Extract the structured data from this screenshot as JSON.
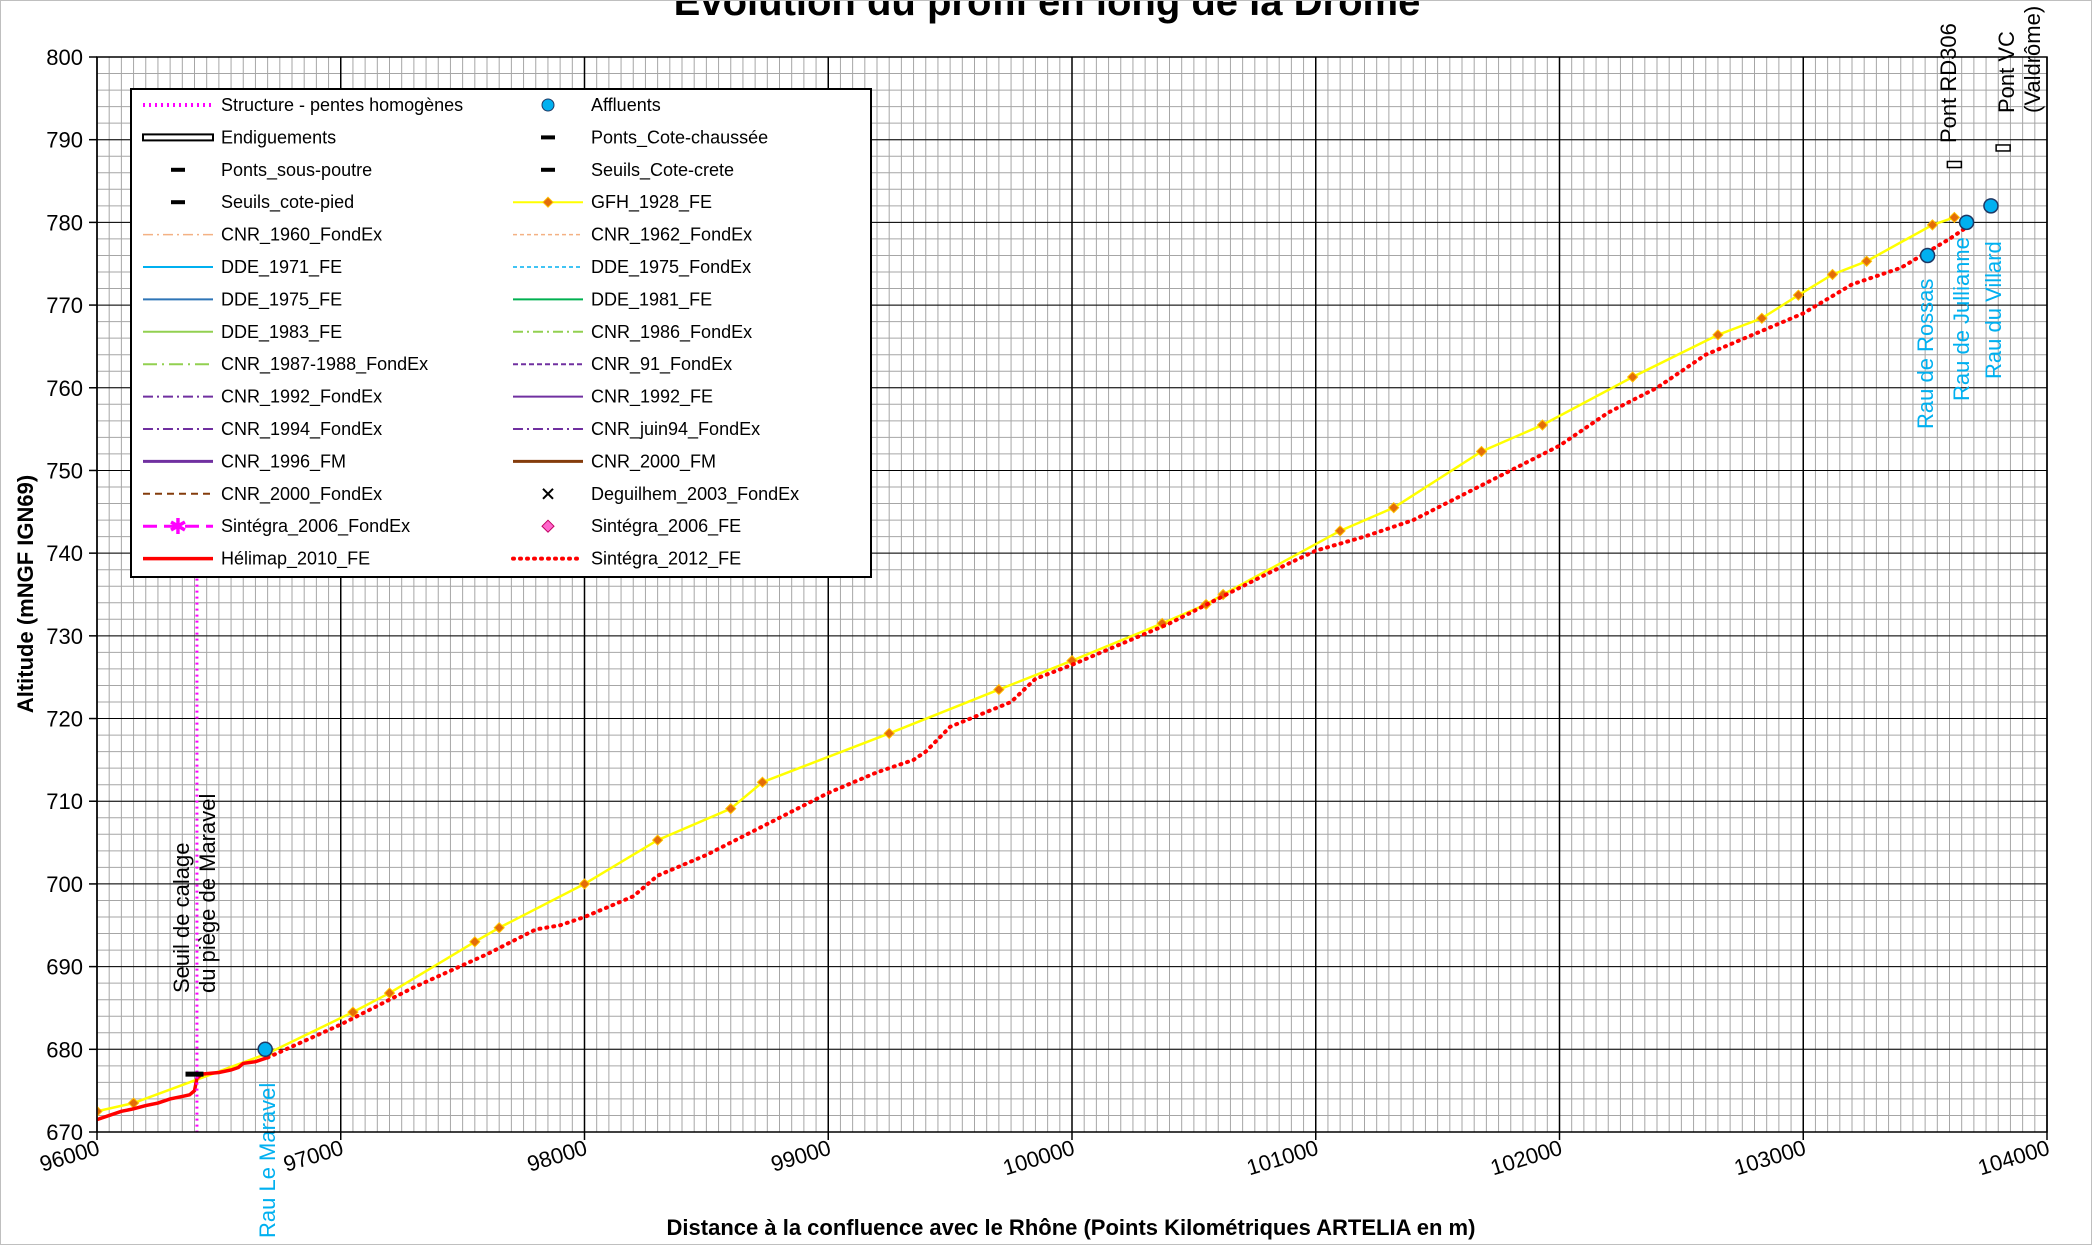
{
  "chart_data": {
    "type": "line",
    "title": "Evolution du profil en long de la Drôme",
    "xlabel": "Distance à la confluence avec le Rhône (Points Kilométriques ARTELIA en m)",
    "ylabel": "Altitude (mNGF IGN69)",
    "xlim": [
      96000,
      104000
    ],
    "ylim": [
      670,
      800
    ],
    "x_ticks": [
      96000,
      97000,
      98000,
      99000,
      100000,
      101000,
      102000,
      103000,
      104000
    ],
    "y_ticks": [
      670,
      680,
      690,
      700,
      710,
      720,
      730,
      740,
      750,
      760,
      770,
      780,
      790,
      800
    ],
    "grid": "major and minor",
    "legend_position": "top-left",
    "legend": [
      "Structure - pentes homogènes",
      "Affluents",
      "Endiguements",
      "Ponts_Cote-chaussée",
      "Ponts_sous-poutre",
      "Seuils_Cote-crete",
      "Seuils_cote-pied",
      "GFH_1928_FE",
      "CNR_1960_FondEx",
      "CNR_1962_FondEx",
      "DDE_1971_FE",
      "DDE_1975_FondEx",
      "DDE_1975_FE",
      "DDE_1981_FE",
      "DDE_1983_FE",
      "CNR_1986_FondEx",
      "CNR_1987-1988_FondEx",
      "CNR_91_FondEx",
      "CNR_1992_FondEx",
      "CNR_1992_FE",
      "CNR_1994_FondEx",
      "CNR_juin94_FondEx",
      "CNR_1996_FM",
      "CNR_2000_FM",
      "CNR_2000_FondEx",
      "Deguilhem_2003_FondEx",
      "Sintégra_2006_FondEx",
      "Sintégra_2006_FE",
      "Hélimap_2010_FE",
      "Sintégra_2012_FE"
    ],
    "series": [
      {
        "name": "GFH_1928_FE",
        "color": "#ffff00",
        "marker_color": "#e36c09",
        "x": [
          96000,
          96150,
          96700,
          97050,
          97200,
          97550,
          97650,
          98000,
          98300,
          98600,
          98730,
          99250,
          99700,
          100000,
          100370,
          100550,
          100620,
          101100,
          101320,
          101680,
          101930,
          102300,
          102650,
          102830,
          102980,
          103120,
          103260,
          103530,
          103620
        ],
        "y": [
          672.5,
          673.5,
          679.5,
          684.5,
          686.8,
          693,
          694.7,
          700,
          705.3,
          709.1,
          712.3,
          718.2,
          723.5,
          727,
          731.5,
          733.8,
          735,
          742.7,
          745.5,
          752.3,
          755.5,
          761.3,
          766.4,
          768.4,
          771.2,
          773.7,
          775.3,
          779.7,
          780.6
        ]
      },
      {
        "name": "Sintégra_2012_FE",
        "color": "#ff0000",
        "x": [
          96700,
          97000,
          97300,
          97600,
          97800,
          97900,
          98000,
          98200,
          98300,
          98500,
          98700,
          98900,
          99000,
          99200,
          99350,
          99400,
          99500,
          99750,
          99850,
          100000,
          100200,
          100400,
          100600,
          100800,
          101000,
          101200,
          101400,
          101600,
          101800,
          102000,
          102200,
          102400,
          102600,
          102800,
          103000,
          103200,
          103400,
          103600,
          103700
        ],
        "y": [
          679,
          683,
          687.5,
          691.5,
          694.5,
          695,
          696,
          698.5,
          701,
          703.5,
          706.5,
          709.5,
          711,
          713.5,
          715,
          716,
          719,
          722,
          724.8,
          726.5,
          729,
          731.5,
          734.5,
          737.5,
          740.3,
          742,
          744,
          747,
          750,
          753,
          757,
          760,
          764,
          766.5,
          769,
          772.5,
          774.5,
          778,
          780
        ]
      },
      {
        "name": "Hélimap_2010_FE",
        "color": "#ff0000",
        "x": [
          96000,
          96100,
          96150,
          96200,
          96250,
          96300,
          96350,
          96380,
          96400,
          96410,
          96430,
          96500,
          96550,
          96580,
          96600,
          96650,
          96700
        ],
        "y": [
          671.5,
          672.5,
          672.8,
          673.2,
          673.5,
          674,
          674.3,
          674.5,
          675,
          676.5,
          677,
          677.2,
          677.5,
          677.8,
          678.3,
          678.5,
          679
        ]
      }
    ],
    "affluents": [
      {
        "name": "Rau Le Maravel",
        "x": 96690,
        "y": 680
      },
      {
        "name": "Rau de Rossas",
        "x": 103510,
        "y": 776
      },
      {
        "name": "Rau de Jullianne",
        "x": 103670,
        "y": 780
      },
      {
        "name": "Rau du Villard",
        "x": 103770,
        "y": 782
      }
    ],
    "ponts": [
      {
        "name": "Pont RD306",
        "x": 103620,
        "y": 787
      },
      {
        "name": "Pont VC (Valdrôme)",
        "x": 103820,
        "y": 789
      }
    ],
    "seuil": {
      "label_line1": "Seuil de calage",
      "label_line2": "du piège de Maravel",
      "x": 96400,
      "y": 677
    },
    "structure_x": 96410
  }
}
